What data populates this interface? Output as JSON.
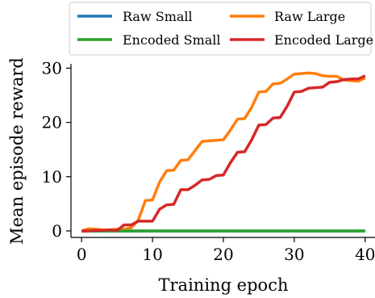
{
  "chart_data": {
    "type": "line",
    "xlabel": "Training epoch",
    "ylabel": "Mean episode reward",
    "xlim": [
      -1.5,
      41.5
    ],
    "ylim": [
      -1.2,
      30.8
    ],
    "xticks": [
      0,
      10,
      20,
      30,
      40
    ],
    "yticks": [
      0,
      10,
      20,
      30
    ],
    "grid": false,
    "legend": {
      "placement": "top",
      "columns": 2
    },
    "x": [
      0,
      1,
      2,
      3,
      4,
      5,
      6,
      7,
      8,
      9,
      10,
      11,
      12,
      13,
      14,
      15,
      16,
      17,
      18,
      19,
      20,
      21,
      22,
      23,
      24,
      25,
      26,
      27,
      28,
      29,
      30,
      31,
      32,
      33,
      34,
      35,
      36,
      37,
      38,
      39,
      40
    ],
    "series": [
      {
        "name": "Raw Small",
        "color": "#1f77b4",
        "values": [
          0,
          0,
          0,
          0,
          0,
          0,
          0,
          0,
          0,
          0,
          0,
          0,
          0,
          0,
          0,
          0,
          0,
          0,
          0,
          0,
          0,
          0,
          0,
          0,
          0,
          0,
          0,
          0,
          0,
          0,
          0,
          0,
          0,
          0,
          0,
          0,
          0,
          0,
          0,
          0,
          0
        ]
      },
      {
        "name": "Raw Large",
        "color": "#ff7f0e",
        "values": [
          0,
          0.4,
          0.3,
          0.2,
          0.2,
          0.3,
          0.3,
          0.6,
          2.0,
          5.6,
          5.7,
          9.0,
          11.1,
          11.2,
          13.0,
          13.1,
          14.8,
          16.5,
          16.6,
          16.7,
          16.8,
          18.6,
          20.6,
          20.7,
          22.8,
          25.6,
          25.7,
          27.1,
          27.2,
          28.0,
          28.9,
          29.0,
          29.1,
          29.0,
          28.6,
          28.5,
          28.5,
          27.8,
          27.7,
          27.6,
          28.2
        ]
      },
      {
        "name": "Encoded Small",
        "color": "#2ca02c",
        "values": [
          0,
          0,
          0,
          0,
          0,
          0,
          0,
          0,
          0,
          0,
          0,
          0,
          0,
          0,
          0,
          0,
          0,
          0,
          0,
          0,
          0,
          0,
          0,
          0,
          0,
          0,
          0,
          0,
          0,
          0,
          0,
          0,
          0,
          0,
          0,
          0,
          0,
          0,
          0,
          0,
          0
        ]
      },
      {
        "name": "Encoded Large",
        "color": "#d62728",
        "values": [
          0,
          0,
          0.1,
          0.1,
          0.2,
          0.1,
          1.1,
          1.1,
          1.8,
          1.8,
          1.8,
          4.0,
          4.8,
          4.9,
          7.6,
          7.6,
          8.4,
          9.4,
          9.5,
          10.2,
          10.3,
          12.6,
          14.5,
          14.6,
          16.8,
          19.5,
          19.6,
          20.8,
          20.9,
          23.0,
          25.6,
          25.7,
          26.3,
          26.4,
          26.5,
          27.4,
          27.5,
          27.9,
          28.0,
          28.0,
          28.6
        ]
      }
    ]
  }
}
